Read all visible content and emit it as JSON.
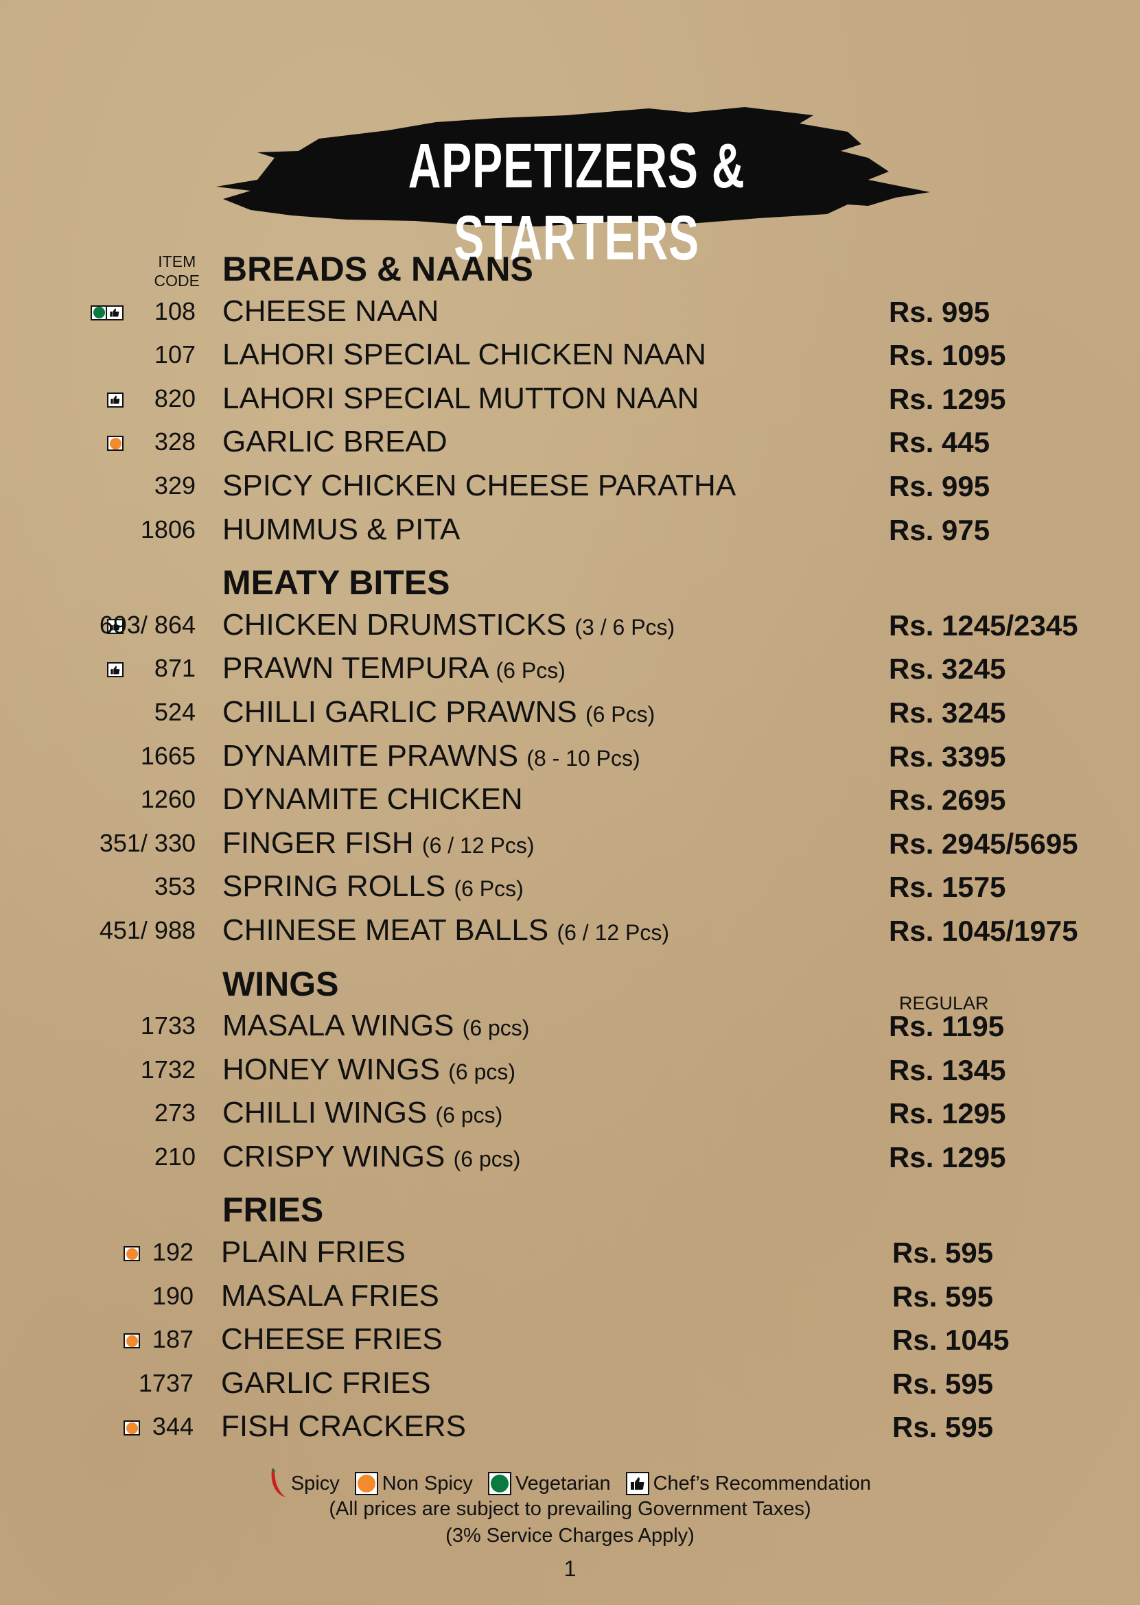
{
  "title": "APPETIZERS & STARTERS",
  "item_code_label": "ITEM\nCODE",
  "colors": {
    "non_spicy": "#f28a2e",
    "vegetarian": "#0b7a3e",
    "spicy": "#c8201c",
    "background": "#c3a983"
  },
  "sections": [
    {
      "name": "BREADS & NAANS",
      "items": [
        {
          "code": "108",
          "name": "CHEESE NAAN",
          "suffix": "",
          "price": "Rs. 995",
          "icons": [
            "vegetarian",
            "chef"
          ]
        },
        {
          "code": "107",
          "name": "LAHORI SPECIAL CHICKEN NAAN",
          "suffix": "",
          "price": "Rs. 1095",
          "icons": []
        },
        {
          "code": "820",
          "name": "LAHORI SPECIAL MUTTON NAAN",
          "suffix": "",
          "price": "Rs. 1295",
          "icons": [
            "chef"
          ]
        },
        {
          "code": "328",
          "name": "GARLIC BREAD",
          "suffix": "",
          "price": "Rs. 445",
          "icons": [
            "non_spicy"
          ]
        },
        {
          "code": "329",
          "name": "SPICY CHICKEN CHEESE PARATHA",
          "suffix": "",
          "price": "Rs. 995",
          "icons": []
        },
        {
          "code": "1806",
          "name": "HUMMUS & PITA",
          "suffix": "",
          "price": "Rs. 975",
          "icons": []
        }
      ]
    },
    {
      "name": "MEATY BITES",
      "items": [
        {
          "code": "693/ 864",
          "name": "CHICKEN DRUMSTICKS",
          "suffix": "(3 / 6 Pcs)",
          "price": "Rs. 1245/2345",
          "icons": [
            "chef"
          ]
        },
        {
          "code": "871",
          "name": "PRAWN TEMPURA",
          "suffix": "(6 Pcs)",
          "price": "Rs. 3245",
          "icons": [
            "chef"
          ]
        },
        {
          "code": "524",
          "name": "CHILLI GARLIC PRAWNS",
          "suffix": "(6 Pcs)",
          "price": "Rs. 3245",
          "icons": []
        },
        {
          "code": "1665",
          "name": "DYNAMITE PRAWNS",
          "suffix": "(8 - 10 Pcs)",
          "price": "Rs. 3395",
          "icons": []
        },
        {
          "code": "1260",
          "name": "DYNAMITE CHICKEN",
          "suffix": "",
          "price": "Rs. 2695",
          "icons": []
        },
        {
          "code": "351/ 330",
          "name": "FINGER FISH",
          "suffix": "(6 / 12 Pcs)",
          "price": "Rs. 2945/5695",
          "icons": []
        },
        {
          "code": "353",
          "name": "SPRING ROLLS",
          "suffix": "(6 Pcs)",
          "price": "Rs. 1575",
          "icons": []
        },
        {
          "code": "451/ 988",
          "name": "CHINESE MEAT BALLS",
          "suffix": "(6 / 12 Pcs)",
          "price": "Rs. 1045/1975",
          "icons": []
        }
      ]
    },
    {
      "name": "WINGS",
      "price_header": "REGULAR",
      "items": [
        {
          "code": "1733",
          "name": "MASALA WINGS",
          "suffix": "(6 pcs)",
          "price": "Rs. 1195",
          "icons": []
        },
        {
          "code": "1732",
          "name": "HONEY WINGS",
          "suffix": "(6 pcs)",
          "price": "Rs. 1345",
          "icons": []
        },
        {
          "code": "273",
          "name": "CHILLI WINGS",
          "suffix": "(6 pcs)",
          "price": "Rs. 1295",
          "icons": []
        },
        {
          "code": "210",
          "name": "CRISPY WINGS",
          "suffix": "(6 pcs)",
          "price": "Rs. 1295",
          "icons": []
        }
      ]
    },
    {
      "name": "FRIES",
      "items": [
        {
          "code": "192",
          "name": "PLAIN FRIES",
          "suffix": "",
          "price": "Rs. 595",
          "icons": [
            "non_spicy"
          ]
        },
        {
          "code": "190",
          "name": "MASALA FRIES",
          "suffix": "",
          "price": "Rs. 595",
          "icons": []
        },
        {
          "code": "187",
          "name": "CHEESE FRIES",
          "suffix": "",
          "price": "Rs. 1045",
          "icons": [
            "non_spicy"
          ]
        },
        {
          "code": "1737",
          "name": "GARLIC FRIES",
          "suffix": "",
          "price": "Rs. 595",
          "icons": []
        },
        {
          "code": "344",
          "name": "FISH CRACKERS",
          "suffix": "",
          "price": "Rs. 595",
          "icons": [
            "non_spicy"
          ]
        }
      ]
    }
  ],
  "legend": {
    "spicy": "Spicy",
    "non_spicy": "Non Spicy",
    "vegetarian": "Vegetarian",
    "chef": "Chef’s Recommendation"
  },
  "notes": {
    "taxes": "(All prices are subject to prevailing Government Taxes)",
    "service": "(3% Service Charges Apply)"
  },
  "page_number": "1"
}
